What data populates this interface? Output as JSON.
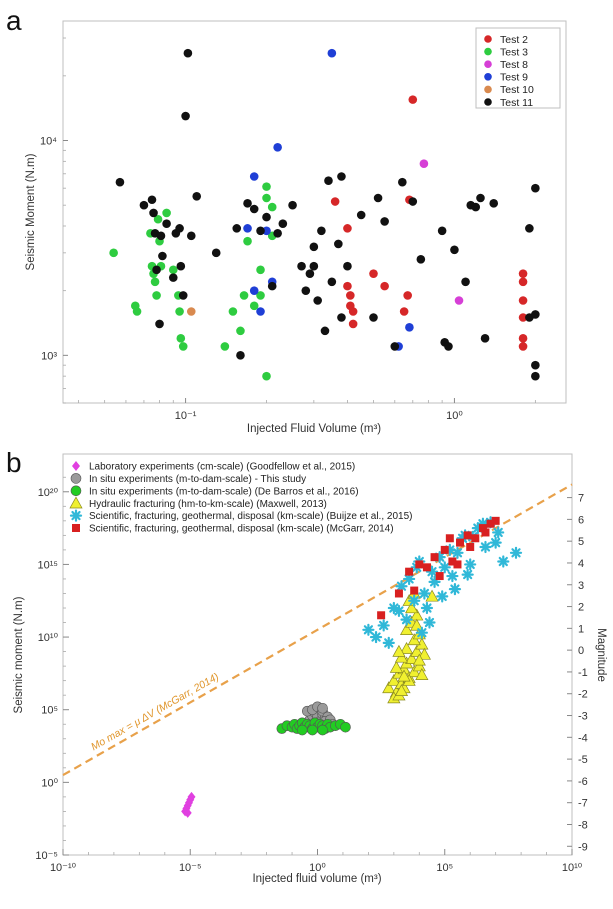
{
  "chart_data": [
    {
      "panel": "a",
      "type": "scatter",
      "xlabel": "Injected Fluid Volume (m³)",
      "ylabel": "Seismic Moment  (N.m)",
      "xscale": "log",
      "yscale": "log",
      "xlim": [
        0.035,
        2.6
      ],
      "ylim": [
        600,
        36000
      ],
      "xticks": [
        {
          "v": 0.1,
          "label": "10⁻¹"
        },
        {
          "v": 1,
          "label": "10⁰"
        }
      ],
      "yticks": [
        {
          "v": 1000,
          "label": "10³"
        },
        {
          "v": 10000,
          "label": "10⁴"
        }
      ],
      "legend_position": "top-right",
      "series": [
        {
          "name": "Test 2",
          "color": "#d62728",
          "x": [
            0.36,
            0.4,
            0.4,
            0.41,
            0.41,
            0.42,
            0.42,
            0.5,
            0.55,
            0.65,
            0.67,
            0.68,
            0.7,
            1.8,
            1.8,
            1.8,
            1.8,
            1.8,
            1.8
          ],
          "y": [
            5200,
            3900,
            2100,
            1900,
            1700,
            1600,
            1400,
            2400,
            2100,
            1600,
            1900,
            5300,
            15500,
            2400,
            2200,
            1800,
            1500,
            1200,
            1100
          ]
        },
        {
          "name": "Test 3",
          "color": "#2ecc40",
          "x": [
            0.054,
            0.065,
            0.066,
            0.074,
            0.075,
            0.076,
            0.077,
            0.078,
            0.079,
            0.08,
            0.081,
            0.085,
            0.09,
            0.094,
            0.095,
            0.096,
            0.098,
            0.14,
            0.15,
            0.16,
            0.165,
            0.17,
            0.18,
            0.19,
            0.19,
            0.2,
            0.2,
            0.2,
            0.21,
            0.21
          ],
          "y": [
            3000,
            1700,
            1600,
            3700,
            2600,
            2400,
            2200,
            1900,
            4300,
            3400,
            2600,
            4600,
            2500,
            1900,
            1600,
            1200,
            1100,
            1100,
            1600,
            1300,
            1900,
            3400,
            1700,
            2500,
            1900,
            6100,
            5400,
            800,
            4900,
            3600
          ]
        },
        {
          "name": "Test 8",
          "color": "#d63fd6",
          "x": [
            0.77,
            1.04
          ],
          "y": [
            7800,
            1800
          ]
        },
        {
          "name": "Test 9",
          "color": "#1f3fd6",
          "x": [
            0.17,
            0.18,
            0.18,
            0.19,
            0.2,
            0.21,
            0.22,
            0.35,
            0.62,
            0.68
          ],
          "y": [
            3900,
            6800,
            2000,
            1600,
            3800,
            2200,
            9300,
            25500,
            1100,
            1350
          ]
        },
        {
          "name": "Test 10",
          "color": "#d98a4f",
          "x": [
            0.105
          ],
          "y": [
            1600
          ]
        },
        {
          "name": "Test 11",
          "color": "#111111",
          "x": [
            0.057,
            0.07,
            0.075,
            0.076,
            0.077,
            0.078,
            0.08,
            0.081,
            0.082,
            0.085,
            0.09,
            0.092,
            0.095,
            0.096,
            0.098,
            0.1,
            0.102,
            0.105,
            0.11,
            0.13,
            0.155,
            0.16,
            0.17,
            0.18,
            0.19,
            0.2,
            0.21,
            0.22,
            0.23,
            0.25,
            0.27,
            0.28,
            0.29,
            0.3,
            0.3,
            0.31,
            0.32,
            0.33,
            0.34,
            0.35,
            0.37,
            0.38,
            0.38,
            0.4,
            0.45,
            0.5,
            0.52,
            0.55,
            0.6,
            0.64,
            0.7,
            0.75,
            0.9,
            0.92,
            0.95,
            1.0,
            1.1,
            1.15,
            1.2,
            1.25,
            1.3,
            1.4,
            1.9,
            1.9,
            2.0,
            2.0,
            2.0,
            2.0
          ],
          "y": [
            6400,
            5000,
            5300,
            4600,
            3700,
            2500,
            1400,
            3600,
            2900,
            4100,
            2300,
            3700,
            3900,
            2600,
            1900,
            13000,
            25500,
            3600,
            5500,
            3000,
            3900,
            1000,
            5100,
            4800,
            3800,
            4400,
            2100,
            3700,
            4100,
            5000,
            2600,
            2000,
            2400,
            3200,
            2600,
            1800,
            3800,
            1300,
            6500,
            2200,
            3300,
            6800,
            1500,
            2600,
            4500,
            1500,
            5400,
            4200,
            1100,
            6400,
            5200,
            2800,
            3800,
            1150,
            1100,
            3100,
            2200,
            5000,
            4900,
            5400,
            1200,
            5100,
            3900,
            1500,
            6000,
            900,
            800,
            1550
          ]
        }
      ]
    },
    {
      "panel": "b",
      "type": "scatter",
      "xlabel": "Injected fluid volume (m³)",
      "ylabel": "Seismic moment (N.m)",
      "y2label": "Magnitude",
      "xscale": "log",
      "yscale": "log",
      "xlim_exp": [
        -10,
        10
      ],
      "ylim_exp": [
        -5,
        22.6
      ],
      "xticks": [
        {
          "e": -10,
          "label": "10⁻¹⁰"
        },
        {
          "e": -5,
          "label": "10⁻⁵"
        },
        {
          "e": 0,
          "label": "10⁰"
        },
        {
          "e": 5,
          "label": "10⁵"
        },
        {
          "e": 10,
          "label": "10¹⁰"
        }
      ],
      "yticks": [
        {
          "e": -5,
          "label": "10⁻⁵"
        },
        {
          "e": 0,
          "label": "10⁰"
        },
        {
          "e": 5,
          "label": "10⁵"
        },
        {
          "e": 10,
          "label": "10¹⁰"
        },
        {
          "e": 15,
          "label": "10¹⁵"
        },
        {
          "e": 20,
          "label": "10²⁰"
        }
      ],
      "magnitude_ticks": [
        7,
        6,
        5,
        4,
        3,
        2,
        1,
        0,
        -1,
        -2,
        -3,
        -4,
        -5,
        -6,
        -7,
        -8,
        -9
      ],
      "legend_position": "top-left",
      "trend_line": {
        "label": "Mo max = μ ΔV (McGarr, 2014)",
        "color": "#e8a14a",
        "x_exp": [
          -10,
          10
        ],
        "y_exp": [
          0.5,
          20.5
        ]
      },
      "series": [
        {
          "name": "Laboratory experiments (cm-scale) (Goodfellow et al., 2015)",
          "marker": "diamond",
          "color": "#e040e0",
          "x_exp": [
            -5.2,
            -5.1,
            -5.0,
            -5.15,
            -5.05,
            -4.95,
            -5.1
          ],
          "y_exp": [
            -2.0,
            -1.6,
            -1.2,
            -1.8,
            -1.4,
            -1.0,
            -2.1
          ]
        },
        {
          "name": "In situ experiments (m-to-dam-scale) - This study",
          "marker": "circle",
          "color": "#9a9a9a",
          "x_exp": [
            -0.5,
            -0.3,
            -0.2,
            -0.1,
            0.0,
            0.1,
            0.2,
            0.3,
            -0.4,
            -0.2,
            0.0,
            0.2,
            0.4,
            -0.3,
            -0.1,
            0.1,
            0.3,
            0.5,
            -0.5,
            0.2,
            0.6,
            -0.25,
            0.05,
            0.35
          ],
          "y_exp": [
            4.0,
            4.3,
            4.6,
            4.8,
            4.5,
            4.2,
            4.7,
            4.4,
            4.9,
            5.0,
            5.2,
            4.9,
            4.5,
            3.9,
            4.1,
            4.0,
            4.2,
            4.3,
            3.8,
            5.1,
            4.0,
            3.7,
            3.8,
            3.9
          ]
        },
        {
          "name": "In situ experiments (m-to-dam-scale) (De Barros et al., 2016)",
          "marker": "circle",
          "color": "#22cc22",
          "x_exp": [
            -1.4,
            -1.2,
            -1.0,
            -0.9,
            -0.8,
            -0.7,
            -0.6,
            -0.5,
            -0.4,
            -0.3,
            -0.2,
            -0.1,
            0.0,
            0.1,
            0.2,
            0.3,
            0.4,
            0.5,
            0.7,
            0.9,
            1.1,
            -0.6,
            -0.2,
            0.2
          ],
          "y_exp": [
            3.7,
            3.9,
            3.8,
            4.0,
            3.7,
            3.9,
            4.1,
            3.8,
            4.0,
            3.9,
            3.7,
            4.1,
            3.8,
            4.0,
            3.9,
            3.7,
            4.0,
            3.8,
            3.9,
            4.0,
            3.8,
            3.6,
            3.6,
            3.6
          ]
        },
        {
          "name": "Hydraulic fracturing (hm-to-km-scale) (Maxwell, 2013)",
          "marker": "triangle",
          "color": "#f0f030",
          "x_exp": [
            2.8,
            3.0,
            3.1,
            3.2,
            3.3,
            3.4,
            3.5,
            3.6,
            3.7,
            3.8,
            3.9,
            4.0,
            4.1,
            4.2,
            3.0,
            3.2,
            3.4,
            3.6,
            3.8,
            4.0,
            3.1,
            3.3,
            3.5,
            3.7,
            3.9,
            3.3,
            3.5,
            3.7,
            4.1,
            3.6,
            3.8,
            3.9,
            4.0,
            3.4,
            4.5,
            3.2
          ],
          "y_exp": [
            6.5,
            7.0,
            6.2,
            7.5,
            6.8,
            7.8,
            8.2,
            7.2,
            8.5,
            7.6,
            9.0,
            8.0,
            9.5,
            8.8,
            5.8,
            6.0,
            6.5,
            7.0,
            9.8,
            10.2,
            7.9,
            8.6,
            10.5,
            11.0,
            11.5,
            6.3,
            9.2,
            12.0,
            7.4,
            12.5,
            13.0,
            10.8,
            8.4,
            7.3,
            12.8,
            9.0
          ]
        },
        {
          "name": "Scientific, fracturing, geothermal, disposal (km-scale) (Buijze et al., 2015)",
          "marker": "star",
          "color": "#30b8d8",
          "x_exp": [
            2.0,
            2.3,
            2.6,
            3.0,
            3.3,
            3.6,
            4.0,
            4.2,
            4.5,
            4.8,
            5.0,
            5.2,
            5.5,
            5.8,
            6.0,
            6.3,
            6.6,
            7.0,
            7.3,
            7.8,
            3.5,
            3.8,
            4.3,
            4.6,
            5.3,
            5.7,
            6.1,
            6.5,
            7.1,
            4.1,
            4.9,
            3.9,
            3.2,
            5.9,
            6.8,
            2.8,
            4.4,
            5.4
          ],
          "y_exp": [
            10.5,
            10.0,
            10.8,
            12.0,
            13.5,
            14.0,
            15.2,
            13.0,
            14.5,
            15.5,
            14.8,
            16.0,
            15.8,
            17.0,
            15.0,
            17.5,
            16.2,
            16.5,
            15.2,
            15.8,
            11.2,
            12.5,
            12.0,
            13.8,
            14.2,
            16.8,
            16.9,
            17.8,
            17.2,
            10.3,
            12.8,
            14.8,
            11.8,
            14.3,
            17.9,
            9.6,
            11.0,
            13.3
          ]
        },
        {
          "name": "Scientific, fracturing, geothermal, disposal (km-scale) (McGarr, 2014)",
          "marker": "square",
          "color": "#d82020",
          "x_exp": [
            2.5,
            3.2,
            3.6,
            4.0,
            4.3,
            4.6,
            5.0,
            5.3,
            5.6,
            5.9,
            6.2,
            6.5,
            6.8,
            7.0,
            4.8,
            5.5,
            6.0,
            3.8,
            5.2,
            6.6
          ],
          "y_exp": [
            11.5,
            13.0,
            14.5,
            15.0,
            14.8,
            15.5,
            16.0,
            15.2,
            16.5,
            17.0,
            16.8,
            17.5,
            17.8,
            18.0,
            14.2,
            15.0,
            16.2,
            13.2,
            16.8,
            17.2
          ]
        }
      ]
    }
  ]
}
